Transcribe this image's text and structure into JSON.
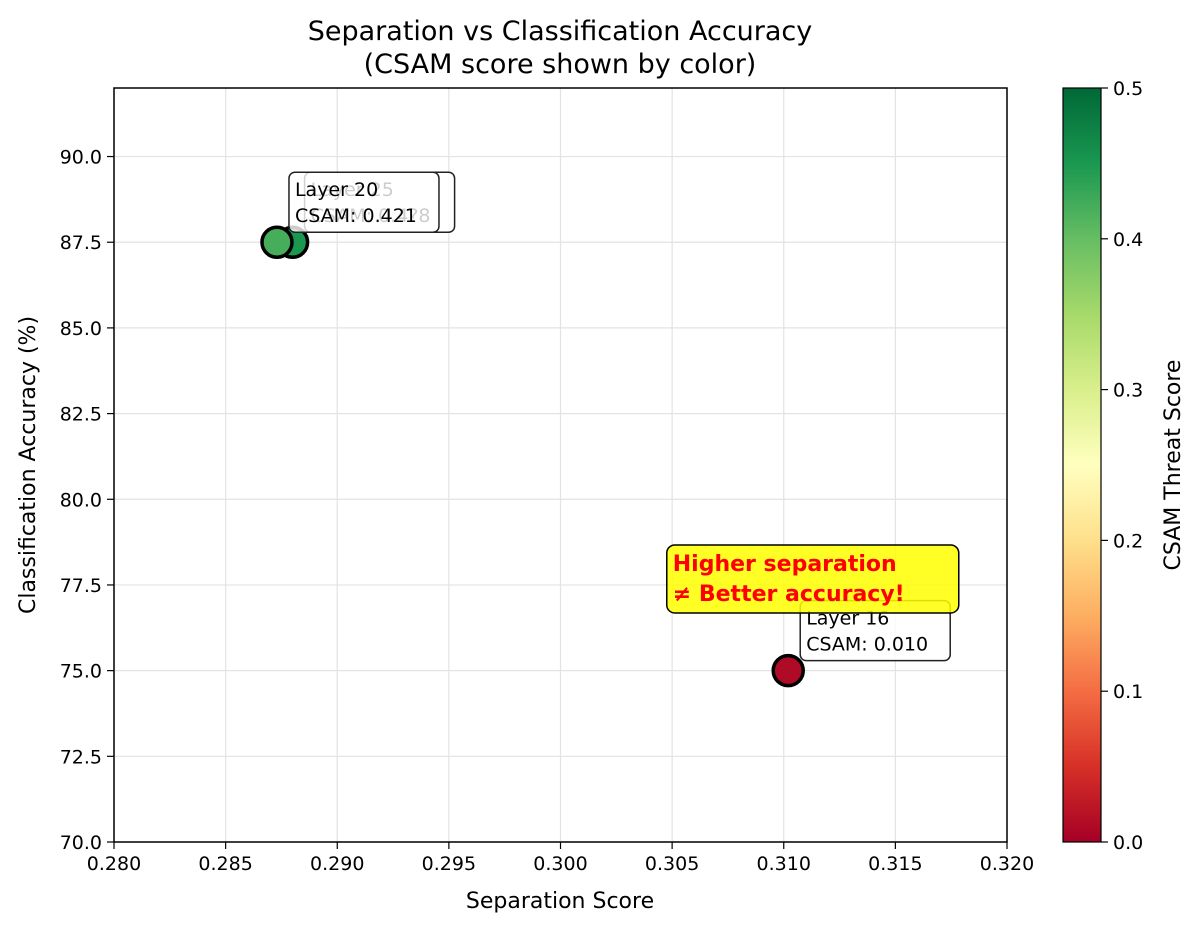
{
  "chart_data": {
    "type": "scatter",
    "title": "Separation vs Classification Accuracy",
    "subtitle": "(CSAM score shown by color)",
    "xlabel": "Separation Score",
    "ylabel": "Classification Accuracy (%)",
    "xlim": [
      0.28,
      0.32
    ],
    "ylim": [
      70.0,
      92.0
    ],
    "xticks": [
      "0.280",
      "0.285",
      "0.290",
      "0.295",
      "0.300",
      "0.305",
      "0.310",
      "0.315",
      "0.320"
    ],
    "yticks": [
      "70.0",
      "72.5",
      "75.0",
      "77.5",
      "80.0",
      "82.5",
      "85.0",
      "87.5",
      "90.0"
    ],
    "grid": true,
    "colorbar": {
      "label": "CSAM Threat Score",
      "range": [
        0.0,
        0.5
      ],
      "ticks": [
        "0.0",
        "0.1",
        "0.2",
        "0.3",
        "0.4",
        "0.5"
      ],
      "colormap": [
        "#a50026",
        "#d73027",
        "#f46d43",
        "#fdae61",
        "#fee08b",
        "#ffffbf",
        "#d9ef8b",
        "#a6d96a",
        "#66bd63",
        "#1a9850",
        "#006837"
      ]
    },
    "points": [
      {
        "x": 0.288,
        "y": 87.5,
        "csam": 0.45,
        "label_line1": "Layer 25",
        "label_line2": "CSAM: 0.4?8"
      },
      {
        "x": 0.2873,
        "y": 87.5,
        "csam": 0.421,
        "label_line1": "Layer 20",
        "label_line2": "CSAM: 0.421"
      },
      {
        "x": 0.3102,
        "y": 75.0,
        "csam": 0.01,
        "label_line1": "Layer 16",
        "label_line2": "CSAM: 0.010"
      }
    ],
    "annotation": {
      "line1": "Higher separation",
      "line2": "≠ Better accuracy!",
      "x": 0.3113,
      "y": 77.5,
      "box_color": "#ffff00",
      "text_color": "#ff0000"
    }
  }
}
